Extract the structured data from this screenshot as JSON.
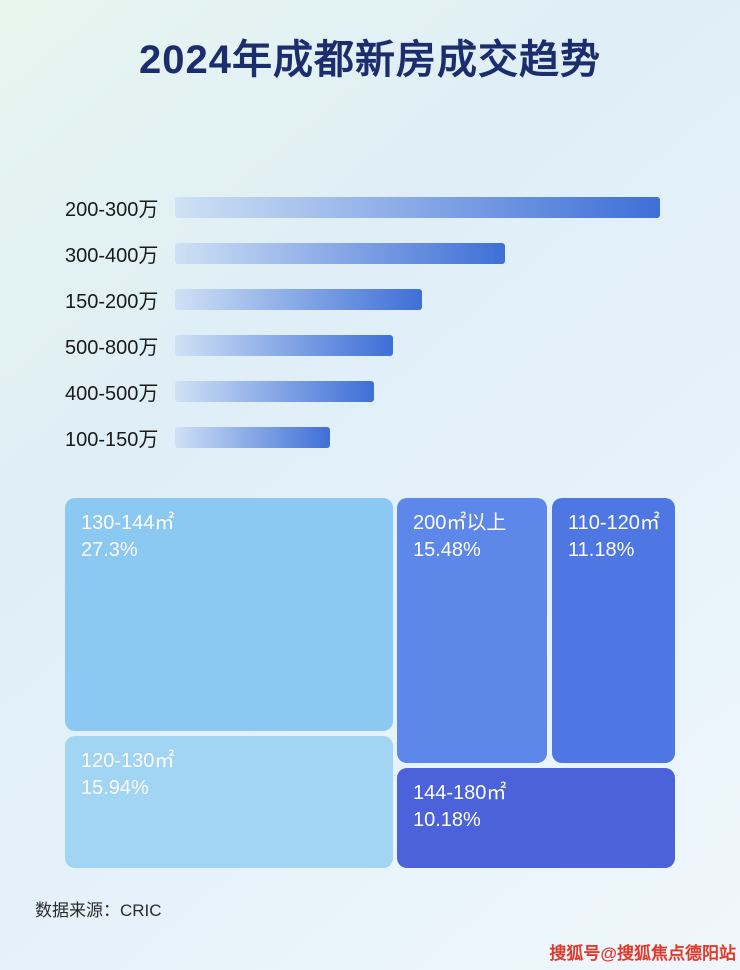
{
  "page": {
    "title": "2024年成都新房成交趋势",
    "source": "数据来源：CRIC",
    "watermark": "搜狐号@搜狐焦点德阳站"
  },
  "colors": {
    "title_text": "#1c2d6e",
    "bar_gradient_start": "#cfe1f5",
    "bar_gradient_end": "#3e6fd7",
    "watermark_text": "#e2392b"
  },
  "chart_data": [
    {
      "type": "bar",
      "orientation": "horizontal",
      "title": "",
      "xlabel": "",
      "ylabel": "",
      "categories": [
        "200-300万",
        "300-400万",
        "150-200万",
        "500-800万",
        "400-500万",
        "100-150万"
      ],
      "values": [
        100,
        68,
        51,
        45,
        41,
        32
      ],
      "value_scale": "relative bar length as % of longest bar (no numeric labels shown)"
    },
    {
      "type": "treemap",
      "title": "",
      "items": [
        {
          "label": "130-144㎡",
          "value": 27.3,
          "display": "27.3%",
          "color": "#8cc9f2"
        },
        {
          "label": "120-130㎡",
          "value": 15.94,
          "display": "15.94%",
          "color": "#a2d4f4"
        },
        {
          "label": "200㎡以上",
          "value": 15.48,
          "display": "15.48%",
          "color": "#5d87e9"
        },
        {
          "label": "110-120㎡",
          "value": 11.18,
          "display": "11.18%",
          "color": "#4e77e3"
        },
        {
          "label": "144-180㎡",
          "value": 10.18,
          "display": "10.18%",
          "color": "#4b62da"
        }
      ]
    }
  ]
}
